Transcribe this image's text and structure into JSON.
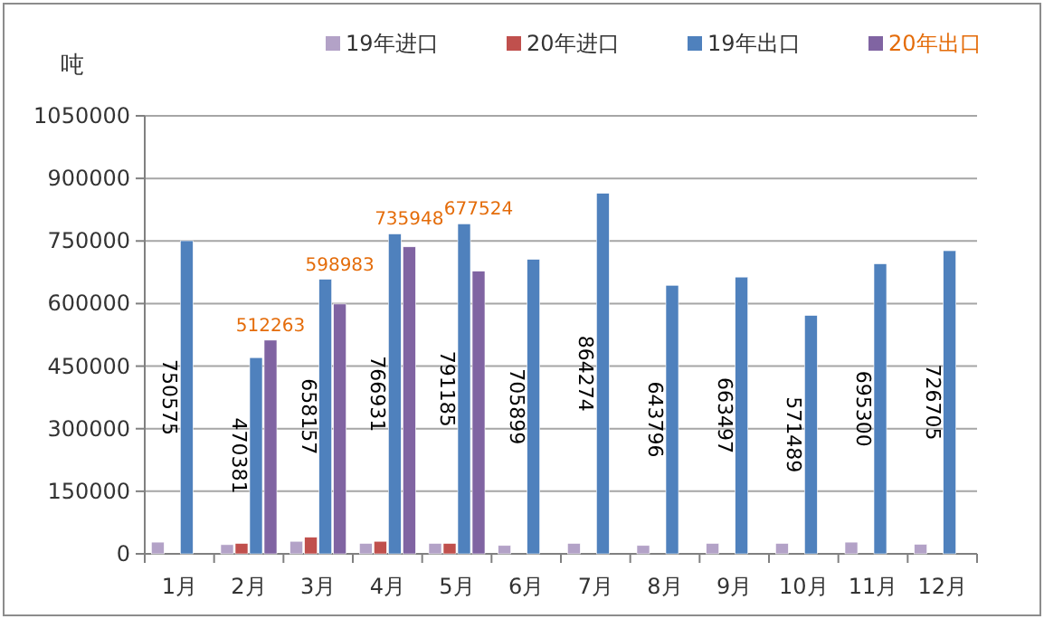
{
  "chart_data": {
    "type": "bar",
    "ylabel": "吨",
    "categories": [
      "1月",
      "2月",
      "3月",
      "4月",
      "5月",
      "6月",
      "7月",
      "8月",
      "9月",
      "10月",
      "11月",
      "12月"
    ],
    "series": [
      {
        "name": "19年进口",
        "color": "#b3a2c7",
        "values": [
          28000,
          22000,
          30000,
          25000,
          25000,
          20000,
          25000,
          20000,
          25000,
          25000,
          28000,
          23000
        ]
      },
      {
        "name": "20年进口",
        "color": "#c0504d",
        "values": [
          null,
          25000,
          40000,
          30000,
          25000,
          null,
          null,
          null,
          null,
          null,
          null,
          null
        ]
      },
      {
        "name": "19年出口",
        "color": "#4f81bd",
        "values": [
          750575,
          470381,
          658157,
          766931,
          791185,
          705899,
          864274,
          643796,
          663497,
          571489,
          695300,
          726705
        ],
        "value_labels": [
          "750575",
          "470381",
          "658157",
          "766931",
          "791185",
          "705899",
          "864274",
          "643796",
          "663497",
          "571489",
          "695300",
          "726705"
        ]
      },
      {
        "name": "20年出口",
        "color": "#8064a2",
        "values": [
          null,
          512263,
          598983,
          735948,
          677524,
          null,
          null,
          null,
          null,
          null,
          null,
          null
        ],
        "value_labels": [
          null,
          "512263",
          "598983",
          "735948",
          "677524",
          null,
          null,
          null,
          null,
          null,
          null,
          null
        ]
      }
    ],
    "ylim": [
      0,
      1050000
    ],
    "yticks": [
      0,
      150000,
      300000,
      450000,
      600000,
      750000,
      900000,
      1050000
    ],
    "grid": "y",
    "legend": "top"
  }
}
